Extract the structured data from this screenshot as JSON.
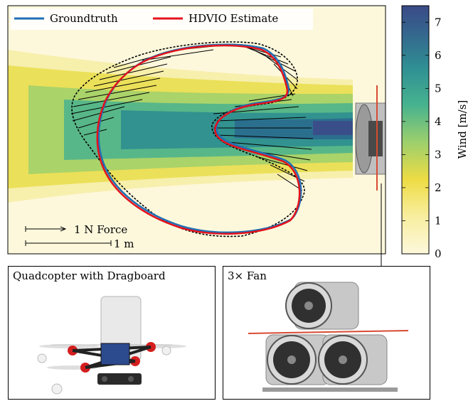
{
  "legend": {
    "groundtruth": "Groundtruth",
    "estimate": "HDVIO Estimate"
  },
  "scale": {
    "force": "1 N Force",
    "distance": "1 m"
  },
  "colorbar": {
    "label": "Wind [m/s]",
    "ticks": [
      "0",
      "1",
      "2",
      "3",
      "4",
      "5",
      "6",
      "7"
    ],
    "range": [
      0,
      7.5
    ]
  },
  "panels": {
    "quadcopter": "Quadcopter with Dragboard",
    "fan": "3× Fan"
  },
  "colors": {
    "groundtruth": "#1f6fb5",
    "estimate": "#e3121c",
    "force_arrows": "#000000",
    "fan_string": "#d84a32"
  }
}
